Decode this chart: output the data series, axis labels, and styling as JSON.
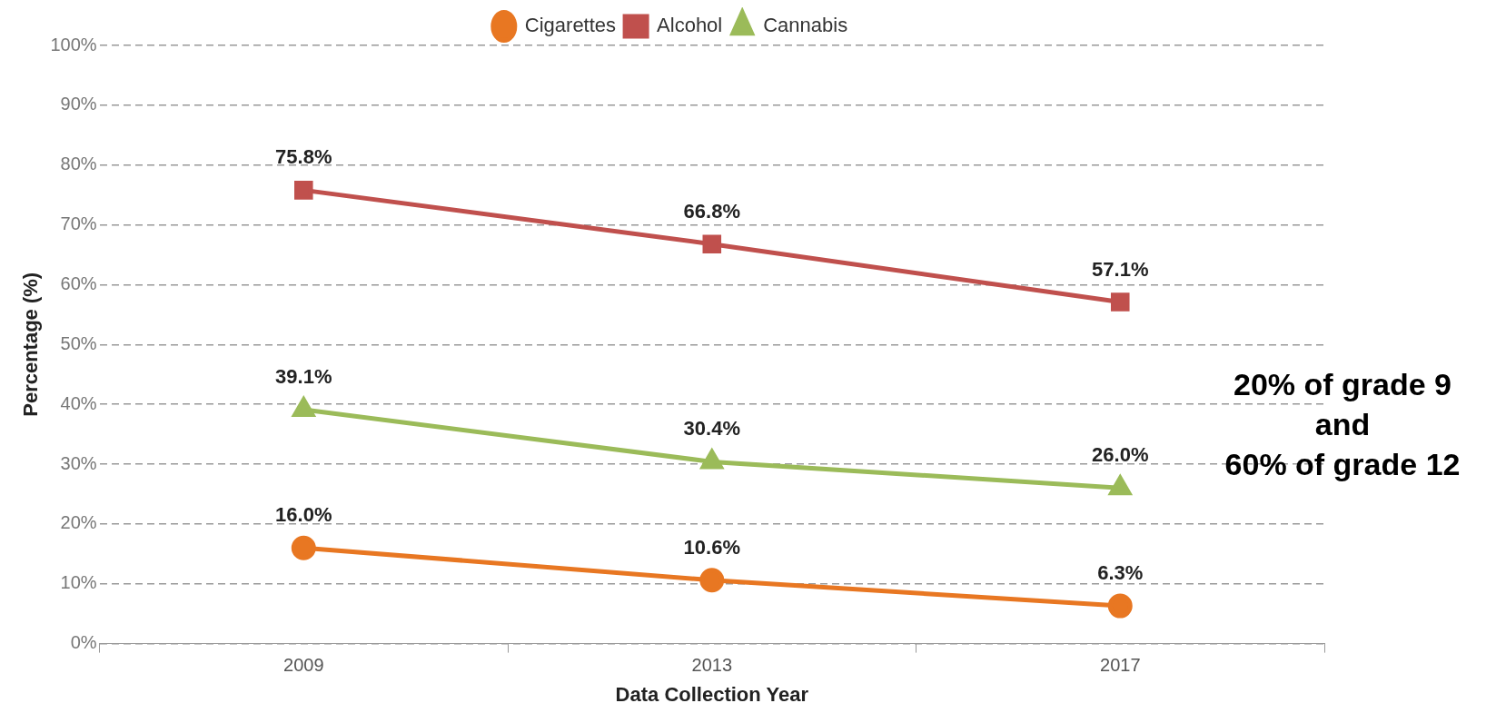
{
  "chart_data": {
    "type": "line",
    "xlabel": "Data Collection Year",
    "ylabel": "Percentage (%)",
    "categories": [
      "2009",
      "2013",
      "2017"
    ],
    "series": [
      {
        "name": "Cigarettes",
        "color": "#e87722",
        "marker": "circle",
        "values": [
          16.0,
          10.6,
          6.3
        ],
        "value_labels": [
          "16.0%",
          "10.6%",
          "6.3%"
        ]
      },
      {
        "name": "Alcohol",
        "color": "#c0504d",
        "marker": "square",
        "values": [
          75.8,
          66.8,
          57.1
        ],
        "value_labels": [
          "75.8%",
          "66.8%",
          "57.1%"
        ]
      },
      {
        "name": "Cannabis",
        "color": "#9bbb59",
        "marker": "triangle",
        "values": [
          39.1,
          30.4,
          26.0
        ],
        "value_labels": [
          "39.1%",
          "30.4%",
          "26.0%"
        ]
      }
    ],
    "ylim": [
      0,
      100
    ],
    "yticks": [
      {
        "value": 0,
        "label": "0%"
      },
      {
        "value": 10,
        "label": "10%"
      },
      {
        "value": 20,
        "label": "20%"
      },
      {
        "value": 30,
        "label": "30%"
      },
      {
        "value": 40,
        "label": "40%"
      },
      {
        "value": 50,
        "label": "50%"
      },
      {
        "value": 60,
        "label": "60%"
      },
      {
        "value": 70,
        "label": "70%"
      },
      {
        "value": 80,
        "label": "80%"
      },
      {
        "value": 90,
        "label": "90%"
      },
      {
        "value": 100,
        "label": "100%"
      }
    ],
    "grid": "y",
    "legend": "top",
    "line_style": "solid",
    "annotations": [
      "20% of grade 9\nand\n60% of grade 12"
    ]
  }
}
